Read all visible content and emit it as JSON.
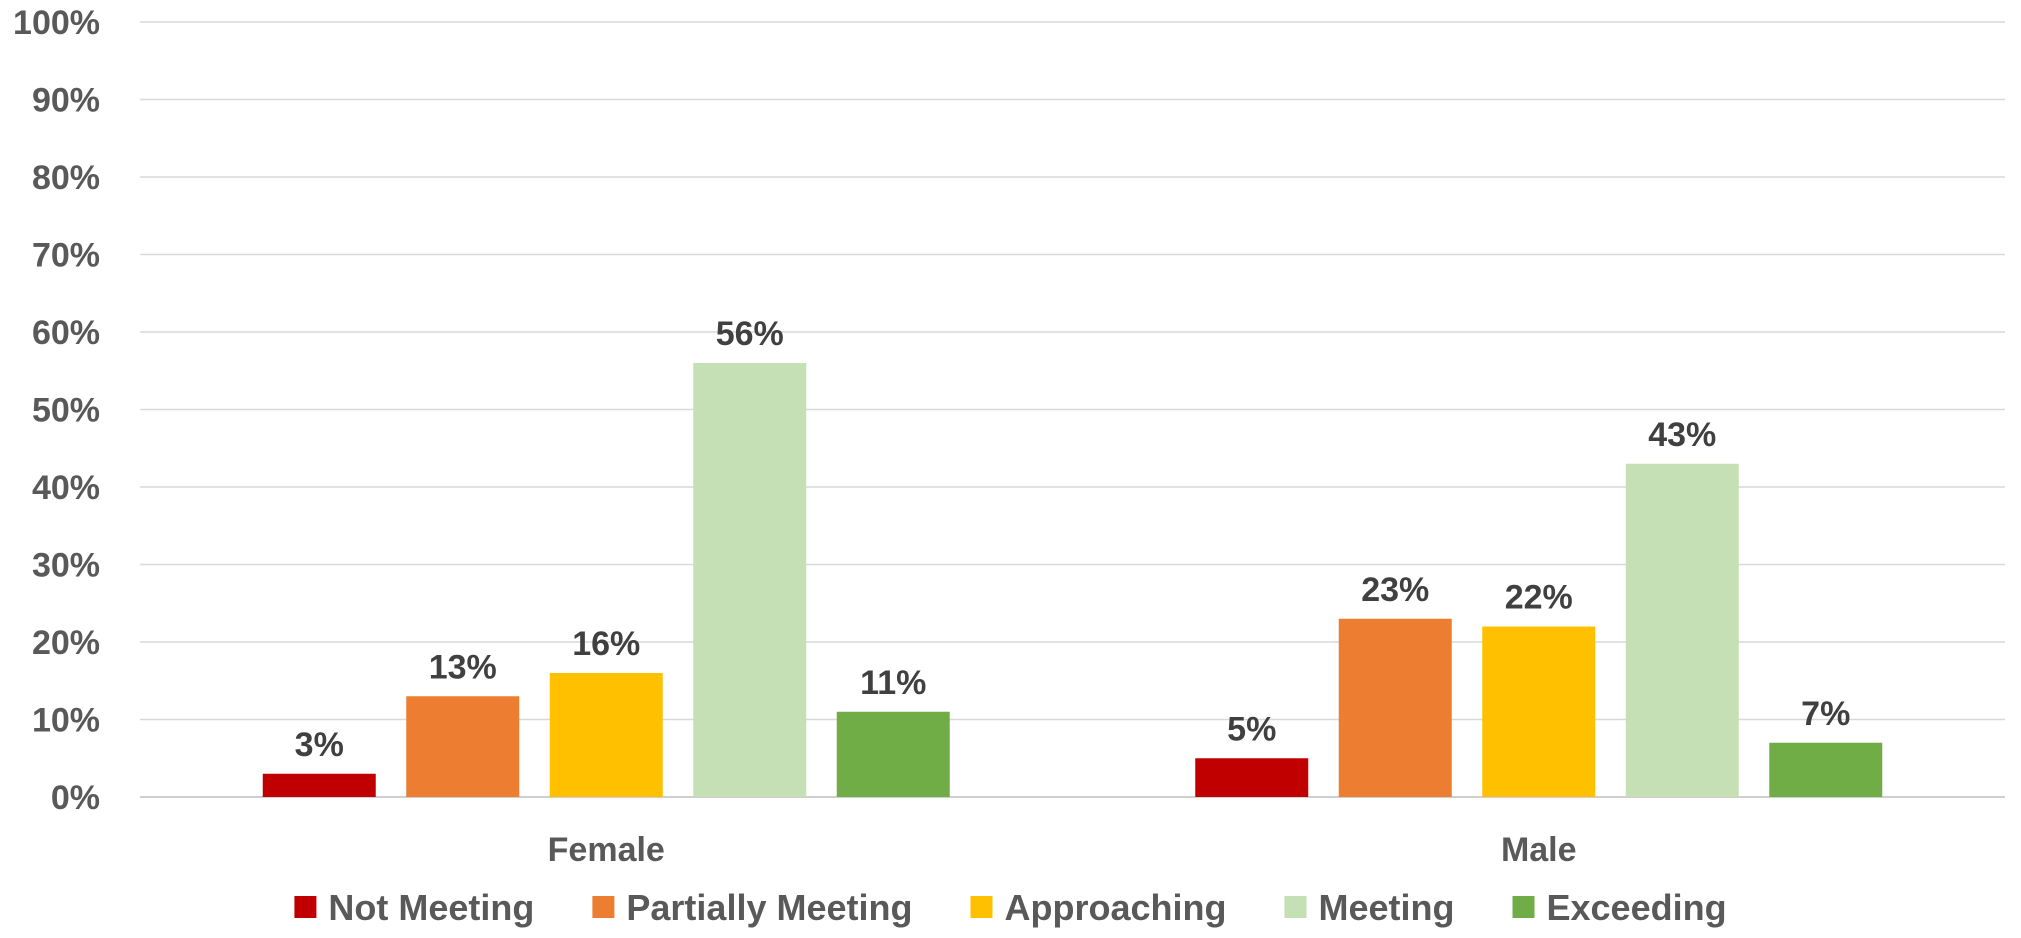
{
  "chart_data": {
    "type": "bar",
    "categories": [
      "Female",
      "Male"
    ],
    "series": [
      {
        "name": "Not Meeting",
        "color": "#C00000",
        "values": [
          3,
          5
        ],
        "labels": [
          "3%",
          "5%"
        ]
      },
      {
        "name": "Partially Meeting",
        "color": "#ED7D31",
        "values": [
          13,
          23
        ],
        "labels": [
          "13%",
          "23%"
        ]
      },
      {
        "name": "Approaching",
        "color": "#FFC000",
        "values": [
          16,
          22
        ],
        "labels": [
          "16%",
          "22%"
        ]
      },
      {
        "name": "Meeting",
        "color": "#C5E0B4",
        "values": [
          56,
          43
        ],
        "labels": [
          "56%",
          "43%"
        ]
      },
      {
        "name": "Exceeding",
        "color": "#70AD47",
        "values": [
          11,
          7
        ],
        "labels": [
          "11%",
          "7%"
        ]
      }
    ],
    "yticks": [
      "0%",
      "10%",
      "20%",
      "30%",
      "40%",
      "50%",
      "60%",
      "70%",
      "80%",
      "90%",
      "100%"
    ],
    "ylim": [
      0,
      100
    ],
    "grid": true,
    "legend_position": "bottom",
    "title": "",
    "xlabel": "",
    "ylabel": ""
  }
}
